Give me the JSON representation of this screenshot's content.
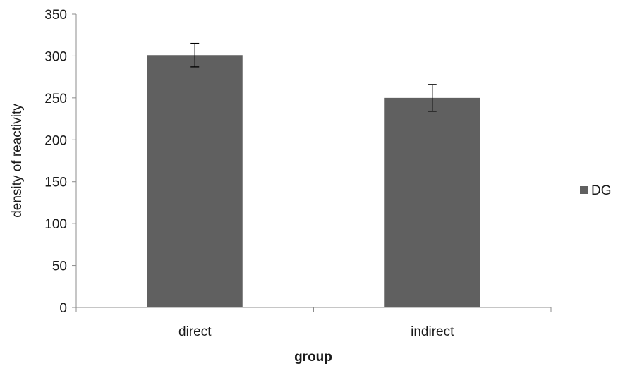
{
  "chart_data": {
    "type": "bar",
    "categories": [
      "direct",
      "indirect"
    ],
    "series": [
      {
        "name": "DG",
        "values": [
          301,
          250
        ],
        "error": [
          14,
          16
        ]
      }
    ],
    "xlabel": "group",
    "ylabel": "density of reactivity",
    "ylim": [
      0,
      350
    ],
    "yticks": [
      0,
      50,
      100,
      150,
      200,
      250,
      300,
      350
    ],
    "grid": false,
    "legend_position": "right",
    "colors": {
      "bar": "#606060",
      "axis": "#8c8c8c",
      "error_bar": "#000000"
    }
  }
}
